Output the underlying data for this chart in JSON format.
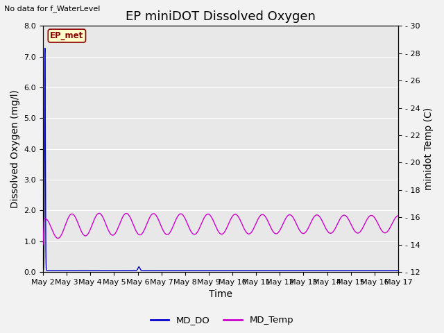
{
  "title": "EP miniDOT Dissolved Oxygen",
  "top_left_text": "No data for f_WaterLevel",
  "box_label": "EP_met",
  "xlabel": "Time",
  "ylabel_left": "Dissolved Oxygen (mg/l)",
  "ylabel_right": "minidot Temp (C)",
  "ylim_left": [
    0.0,
    8.0
  ],
  "ylim_right": [
    12,
    30
  ],
  "yticks_left": [
    0.0,
    1.0,
    2.0,
    3.0,
    4.0,
    5.0,
    6.0,
    7.0,
    8.0
  ],
  "yticks_right": [
    12,
    14,
    16,
    18,
    20,
    22,
    24,
    26,
    28,
    30
  ],
  "x_tick_days": [
    2,
    3,
    4,
    5,
    6,
    7,
    8,
    9,
    10,
    11,
    12,
    13,
    14,
    15,
    16,
    17
  ],
  "x_tick_labels": [
    "May 2",
    "May 3",
    "May 4",
    "May 5",
    "May 6",
    "May 7",
    "May 8",
    "May 9",
    "May 10",
    "May 11",
    "May 12",
    "May 13",
    "May 14",
    "May 15",
    "May 16",
    "May 17"
  ],
  "md_do_color": "#0000cc",
  "md_temp_color": "#cc00cc",
  "background_color": "#e8e8e8",
  "grid_color": "#ffffff",
  "fig_bg_color": "#f2f2f2",
  "legend_entries": [
    "MD_DO",
    "MD_Temp"
  ],
  "title_fontsize": 13,
  "axis_label_fontsize": 10,
  "tick_fontsize": 8
}
